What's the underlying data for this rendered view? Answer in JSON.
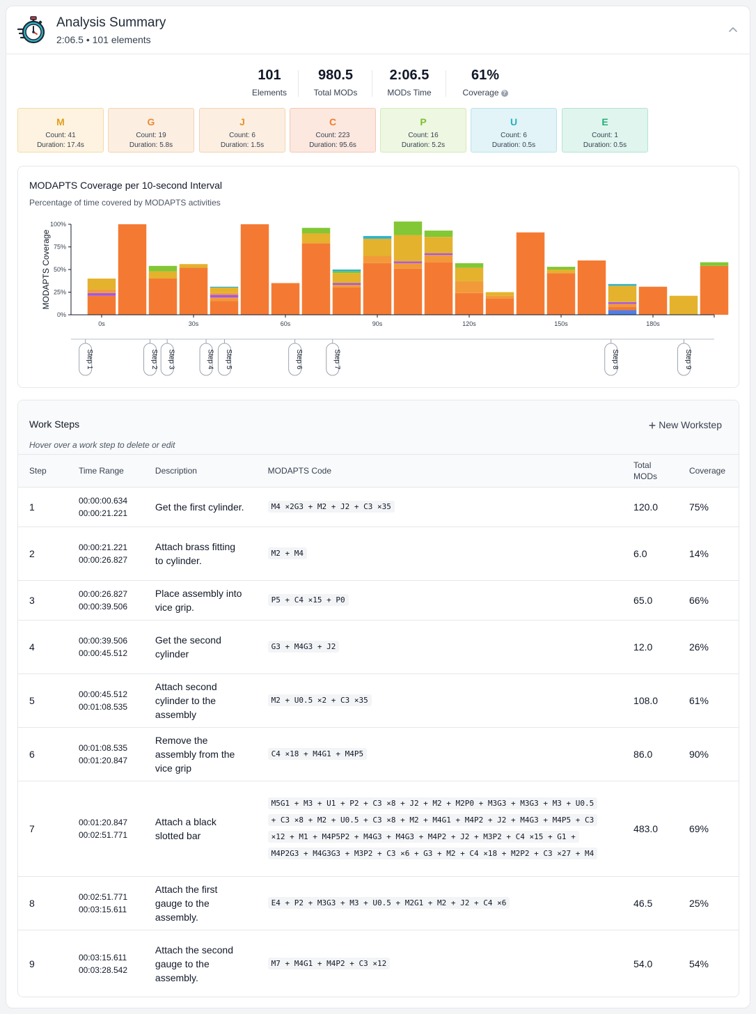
{
  "header": {
    "title": "Analysis Summary",
    "subtitle": "2:06.5 • 101 elements"
  },
  "stats": [
    {
      "value": "101",
      "label": "Elements"
    },
    {
      "value": "980.5",
      "label": "Total MODs"
    },
    {
      "value": "2:06.5",
      "label": "MODs Time"
    },
    {
      "value": "61%",
      "label": "Coverage"
    }
  ],
  "categories": [
    {
      "key": "M",
      "count": "Count: 41",
      "duration": "Duration: 17.4s",
      "bg": "#fdf3e0",
      "border": "#f4dba7",
      "color": "#e0a020"
    },
    {
      "key": "G",
      "count": "Count: 19",
      "duration": "Duration: 5.8s",
      "bg": "#fcefe2",
      "border": "#f4d3b2",
      "color": "#ea8a34"
    },
    {
      "key": "J",
      "count": "Count: 6",
      "duration": "Duration: 1.5s",
      "bg": "#fcefe2",
      "border": "#f4d3b2",
      "color": "#e7932b"
    },
    {
      "key": "C",
      "count": "Count: 223",
      "duration": "Duration: 95.6s",
      "bg": "#fce8df",
      "border": "#f4c8b4",
      "color": "#f07b30"
    },
    {
      "key": "P",
      "count": "Count: 16",
      "duration": "Duration: 5.2s",
      "bg": "#eef7e2",
      "border": "#d4ebb8",
      "color": "#7cc22f"
    },
    {
      "key": "U",
      "count": "Count: 6",
      "duration": "Duration: 0.5s",
      "bg": "#e2f4f7",
      "border": "#b8e3ea",
      "color": "#2aaec4"
    },
    {
      "key": "E",
      "count": "Count: 1",
      "duration": "Duration: 0.5s",
      "bg": "#e0f5ee",
      "border": "#b5e4d3",
      "color": "#22b07a"
    }
  ],
  "chart_data": {
    "type": "bar",
    "title": "MODAPTS Coverage per 10-second Interval",
    "subtitle": "Percentage of time covered by MODAPTS activities",
    "ylabel": "MODAPTS Coverage",
    "ylim": [
      0,
      100
    ],
    "yticks": [
      "0%",
      "25%",
      "50%",
      "75%",
      "100%"
    ],
    "xlabel": "",
    "x_ticks": [
      {
        "t": 0,
        "label": "0s"
      },
      {
        "t": 30,
        "label": "30s"
      },
      {
        "t": 60,
        "label": "60s"
      },
      {
        "t": 90,
        "label": "90s"
      },
      {
        "t": 120,
        "label": "120s"
      },
      {
        "t": 150,
        "label": "150s"
      },
      {
        "t": 180,
        "label": "180s"
      }
    ],
    "interval_seconds": 10,
    "colors": {
      "C": "#f47a33",
      "G": "#f29a3a",
      "M": "#e4b22d",
      "P": "#82c735",
      "U": "#30b3c9",
      "E": "#36b57f",
      "J": "#a357e0",
      "B": "#4f7fe6"
    },
    "stacked_bars": [
      [
        [
          "C",
          21
        ],
        [
          "J",
          3
        ],
        [
          "G",
          4
        ],
        [
          "M",
          12
        ]
      ],
      [
        [
          "C",
          100
        ]
      ],
      [
        [
          "C",
          40
        ],
        [
          "M",
          8
        ],
        [
          "P",
          6
        ]
      ],
      [
        [
          "C",
          52
        ],
        [
          "M",
          4
        ]
      ],
      [
        [
          "C",
          15
        ],
        [
          "G",
          4
        ],
        [
          "J",
          3
        ],
        [
          "G",
          2
        ],
        [
          "M",
          6
        ],
        [
          "U",
          1
        ]
      ],
      [
        [
          "C",
          100
        ]
      ],
      [
        [
          "C",
          35
        ]
      ],
      [
        [
          "C",
          79
        ],
        [
          "M",
          11
        ],
        [
          "P",
          6
        ]
      ],
      [
        [
          "C",
          30
        ],
        [
          "G",
          3
        ],
        [
          "J",
          2
        ],
        [
          "M",
          11
        ],
        [
          "P",
          2
        ],
        [
          "U",
          2
        ]
      ],
      [
        [
          "C",
          57
        ],
        [
          "G",
          8
        ],
        [
          "M",
          19
        ],
        [
          "U",
          3
        ]
      ],
      [
        [
          "C",
          51
        ],
        [
          "G",
          6
        ],
        [
          "J",
          2
        ],
        [
          "M",
          29
        ],
        [
          "P",
          15
        ]
      ],
      [
        [
          "C",
          58
        ],
        [
          "G",
          8
        ],
        [
          "J",
          2
        ],
        [
          "M",
          18
        ],
        [
          "P",
          7
        ]
      ],
      [
        [
          "C",
          24
        ],
        [
          "G",
          13
        ],
        [
          "M",
          15
        ],
        [
          "P",
          5
        ]
      ],
      [
        [
          "C",
          18
        ],
        [
          "G",
          3
        ],
        [
          "M",
          4
        ]
      ],
      [
        [
          "C",
          91
        ]
      ],
      [
        [
          "C",
          46
        ],
        [
          "M",
          4
        ],
        [
          "P",
          3
        ]
      ],
      [
        [
          "C",
          60
        ]
      ],
      [
        [
          "B",
          5
        ],
        [
          "C",
          4
        ],
        [
          "G",
          3
        ],
        [
          "J",
          2
        ],
        [
          "M",
          18
        ],
        [
          "U",
          2
        ]
      ],
      [
        [
          "C",
          31
        ]
      ],
      [
        [
          "M",
          21
        ]
      ],
      [
        [
          "C",
          54
        ],
        [
          "P",
          4
        ]
      ]
    ],
    "steps": [
      {
        "label": "Step 1",
        "t": -5.3
      },
      {
        "label": "Step 2",
        "t": 15.8
      },
      {
        "label": "Step 3",
        "t": 21.4
      },
      {
        "label": "Step 4",
        "t": 34.1
      },
      {
        "label": "Step 5",
        "t": 40.1
      },
      {
        "label": "Step 6",
        "t": 63.1
      },
      {
        "label": "Step 7",
        "t": 75.4
      },
      {
        "label": "Step 8",
        "t": 166.3
      },
      {
        "label": "Step 9",
        "t": 190.1
      }
    ]
  },
  "worksteps": {
    "title": "Work Steps",
    "hint": "Hover over a work step to delete or edit",
    "new_label": "New Workstep",
    "columns": [
      "Step",
      "Time Range",
      "Description",
      "MODAPTS Code",
      "Total MODs",
      "Coverage"
    ],
    "rows": [
      {
        "step": "1",
        "start": "00:00:00.634",
        "end": "00:00:21.221",
        "desc": "Get the first cylinder.",
        "code": "M4 ×2G3 + M2 + J2 + C3 ×35",
        "total": "120.0",
        "coverage": "75%"
      },
      {
        "step": "2",
        "start": "00:00:21.221",
        "end": "00:00:26.827",
        "desc": "Attach brass fitting to cylinder.",
        "code": "M2 + M4",
        "total": "6.0",
        "coverage": "14%"
      },
      {
        "step": "3",
        "start": "00:00:26.827",
        "end": "00:00:39.506",
        "desc": "Place assembly into vice grip.",
        "code": "P5 + C4 ×15 + P0",
        "total": "65.0",
        "coverage": "66%"
      },
      {
        "step": "4",
        "start": "00:00:39.506",
        "end": "00:00:45.512",
        "desc": "Get the second cylinder",
        "code": "G3 + M4G3 + J2",
        "total": "12.0",
        "coverage": "26%"
      },
      {
        "step": "5",
        "start": "00:00:45.512",
        "end": "00:01:08.535",
        "desc": "Attach second cylinder to the assembly",
        "code": "M2 + U0.5 ×2 + C3 ×35",
        "total": "108.0",
        "coverage": "61%"
      },
      {
        "step": "6",
        "start": "00:01:08.535",
        "end": "00:01:20.847",
        "desc": "Remove the assembly from the vice grip",
        "code": "C4 ×18 + M4G1 + M4P5",
        "total": "86.0",
        "coverage": "90%"
      },
      {
        "step": "7",
        "start": "00:01:20.847",
        "end": "00:02:51.771",
        "desc": "Attach a black slotted bar",
        "code": "M5G1 + M3 + U1 + P2 + C3 ×8 + J2 + M2 + M2P0 + M3G3 + M3G3 + M3 + U0.5 + C3 ×8 + M2 + U0.5 + C3 ×8 + M2 + M4G1 + M4P2 + J2 + M4G3 + M4P5 + C3 ×12 + M1 + M4P5P2 + M4G3 + M4G3 + M4P2 + J2 + M3P2 + C4 ×15 + G1 + M4P2G3 + M4G3G3 + M3P2 + C3 ×6 + G3 + M2 + C4 ×18 + M2P2 + C3 ×27 + M4",
        "total": "483.0",
        "coverage": "69%"
      },
      {
        "step": "8",
        "start": "00:02:51.771",
        "end": "00:03:15.611",
        "desc": "Attach the first gauge to the assembly.",
        "code": "E4 + P2 + M3G3 + M3 + U0.5 + M2G1 + M2 + J2 + C4 ×6",
        "total": "46.5",
        "coverage": "25%"
      },
      {
        "step": "9",
        "start": "00:03:15.611",
        "end": "00:03:28.542",
        "desc": "Attach the second gauge to the assembly.",
        "code": "M7 + M4G1 + M4P2 + C3 ×12",
        "total": "54.0",
        "coverage": "54%"
      }
    ]
  }
}
